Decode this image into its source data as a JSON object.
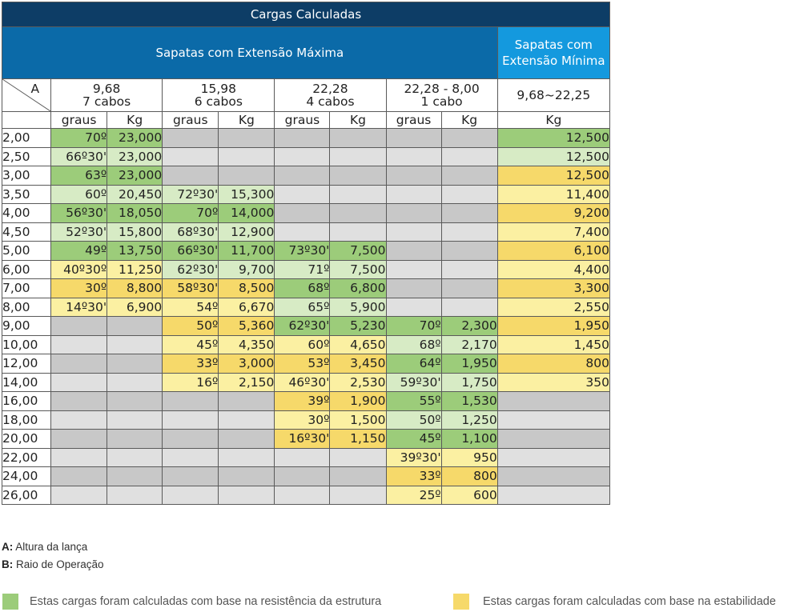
{
  "title": "Cargas Calculadas",
  "section_max": "Sapatas  com Extensão Máxima",
  "section_min": "Sapatas com Extensão Mínima",
  "corner": {
    "a": "A",
    "b": "B"
  },
  "columns": [
    {
      "top": "9,68",
      "bottom": "7 cabos"
    },
    {
      "top": "15,98",
      "bottom": "6 cabos"
    },
    {
      "top": "22,28",
      "bottom": "4 cabos"
    },
    {
      "top": "22,28 - 8,00",
      "bottom": "1 cabo"
    },
    {
      "top": "9,68~22,25",
      "bottom": ""
    }
  ],
  "sub_headers": [
    "graus",
    "Kg",
    "graus",
    "Kg",
    "graus",
    "Kg",
    "graus",
    "Kg",
    "Kg"
  ],
  "color_legend": {
    "g": "#9ccc7a",
    "lg": "#d7ebc5",
    "y": "#f6d96a",
    "ly": "#fbf0a2",
    "gr": "#c8c8c8",
    "lgr": "#e0e0e0"
  },
  "rows": [
    {
      "b": "2,00",
      "cells": [
        [
          "70º",
          "g"
        ],
        [
          "23,000",
          "g"
        ],
        [
          "",
          "gr"
        ],
        [
          "",
          "gr"
        ],
        [
          "",
          "gr"
        ],
        [
          "",
          "gr"
        ],
        [
          "",
          "gr"
        ],
        [
          "",
          "gr"
        ],
        [
          "12,500",
          "g"
        ]
      ]
    },
    {
      "b": "2,50",
      "cells": [
        [
          "66º30'",
          "lg"
        ],
        [
          "23,000",
          "lg"
        ],
        [
          "",
          "lgr"
        ],
        [
          "",
          "lgr"
        ],
        [
          "",
          "lgr"
        ],
        [
          "",
          "lgr"
        ],
        [
          "",
          "lgr"
        ],
        [
          "",
          "lgr"
        ],
        [
          "12,500",
          "lg"
        ]
      ]
    },
    {
      "b": "3,00",
      "cells": [
        [
          "63º",
          "g"
        ],
        [
          "23,000",
          "g"
        ],
        [
          "",
          "gr"
        ],
        [
          "",
          "gr"
        ],
        [
          "",
          "gr"
        ],
        [
          "",
          "gr"
        ],
        [
          "",
          "gr"
        ],
        [
          "",
          "gr"
        ],
        [
          "12,500",
          "y"
        ]
      ]
    },
    {
      "b": "3,50",
      "cells": [
        [
          "60º",
          "lg"
        ],
        [
          "20,450",
          "lg"
        ],
        [
          "72º30'",
          "lg"
        ],
        [
          "15,300",
          "lg"
        ],
        [
          "",
          "lgr"
        ],
        [
          "",
          "lgr"
        ],
        [
          "",
          "lgr"
        ],
        [
          "",
          "lgr"
        ],
        [
          "11,400",
          "ly"
        ]
      ]
    },
    {
      "b": "4,00",
      "cells": [
        [
          "56º30'",
          "g"
        ],
        [
          "18,050",
          "g"
        ],
        [
          "70º",
          "g"
        ],
        [
          "14,000",
          "g"
        ],
        [
          "",
          "gr"
        ],
        [
          "",
          "gr"
        ],
        [
          "",
          "gr"
        ],
        [
          "",
          "gr"
        ],
        [
          "9,200",
          "y"
        ]
      ]
    },
    {
      "b": "4,50",
      "cells": [
        [
          "52º30'",
          "lg"
        ],
        [
          "15,800",
          "lg"
        ],
        [
          "68º30'",
          "lg"
        ],
        [
          "12,900",
          "lg"
        ],
        [
          "",
          "lgr"
        ],
        [
          "",
          "lgr"
        ],
        [
          "",
          "lgr"
        ],
        [
          "",
          "lgr"
        ],
        [
          "7,400",
          "ly"
        ]
      ]
    },
    {
      "b": "5,00",
      "cells": [
        [
          "49º",
          "g"
        ],
        [
          "13,750",
          "g"
        ],
        [
          "66º30'",
          "g"
        ],
        [
          "11,700",
          "g"
        ],
        [
          "73º30'",
          "g"
        ],
        [
          "7,500",
          "g"
        ],
        [
          "",
          "gr"
        ],
        [
          "",
          "gr"
        ],
        [
          "6,100",
          "y"
        ]
      ]
    },
    {
      "b": "6,00",
      "cells": [
        [
          "40º30º",
          "ly"
        ],
        [
          "11,250",
          "ly"
        ],
        [
          "62º30'",
          "lg"
        ],
        [
          "9,700",
          "lg"
        ],
        [
          "71º",
          "lg"
        ],
        [
          "7,500",
          "lg"
        ],
        [
          "",
          "lgr"
        ],
        [
          "",
          "lgr"
        ],
        [
          "4,400",
          "ly"
        ]
      ]
    },
    {
      "b": "7,00",
      "cells": [
        [
          "30º",
          "y"
        ],
        [
          "8,800",
          "y"
        ],
        [
          "58º30'",
          "y"
        ],
        [
          "8,500",
          "y"
        ],
        [
          "68º",
          "g"
        ],
        [
          "6,800",
          "g"
        ],
        [
          "",
          "gr"
        ],
        [
          "",
          "gr"
        ],
        [
          "3,300",
          "y"
        ]
      ]
    },
    {
      "b": "8,00",
      "cells": [
        [
          "14º30'",
          "ly"
        ],
        [
          "6,900",
          "ly"
        ],
        [
          "54º",
          "ly"
        ],
        [
          "6,670",
          "ly"
        ],
        [
          "65º",
          "lg"
        ],
        [
          "5,900",
          "lg"
        ],
        [
          "",
          "lgr"
        ],
        [
          "",
          "lgr"
        ],
        [
          "2,550",
          "ly"
        ]
      ]
    },
    {
      "b": "9,00",
      "cells": [
        [
          "",
          "gr"
        ],
        [
          "",
          "gr"
        ],
        [
          "50º",
          "y"
        ],
        [
          "5,360",
          "y"
        ],
        [
          "62º30'",
          "g"
        ],
        [
          "5,230",
          "g"
        ],
        [
          "70º",
          "g"
        ],
        [
          "2,300",
          "g"
        ],
        [
          "1,950",
          "y"
        ]
      ]
    },
    {
      "b": "10,00",
      "cells": [
        [
          "",
          "lgr"
        ],
        [
          "",
          "lgr"
        ],
        [
          "45º",
          "ly"
        ],
        [
          "4,350",
          "ly"
        ],
        [
          "60º",
          "ly"
        ],
        [
          "4,650",
          "ly"
        ],
        [
          "68º",
          "lg"
        ],
        [
          "2,170",
          "lg"
        ],
        [
          "1,450",
          "ly"
        ]
      ]
    },
    {
      "b": "12,00",
      "cells": [
        [
          "",
          "gr"
        ],
        [
          "",
          "gr"
        ],
        [
          "33º",
          "y"
        ],
        [
          "3,000",
          "y"
        ],
        [
          "53º",
          "y"
        ],
        [
          "3,450",
          "y"
        ],
        [
          "64º",
          "g"
        ],
        [
          "1,950",
          "g"
        ],
        [
          "800",
          "y"
        ]
      ]
    },
    {
      "b": "14,00",
      "cells": [
        [
          "",
          "lgr"
        ],
        [
          "",
          "lgr"
        ],
        [
          "16º",
          "ly"
        ],
        [
          "2,150",
          "ly"
        ],
        [
          "46º30'",
          "ly"
        ],
        [
          "2,530",
          "ly"
        ],
        [
          "59º30'",
          "lg"
        ],
        [
          "1,750",
          "lg"
        ],
        [
          "350",
          "ly"
        ]
      ]
    },
    {
      "b": "16,00",
      "cells": [
        [
          "",
          "gr"
        ],
        [
          "",
          "gr"
        ],
        [
          "",
          "gr"
        ],
        [
          "",
          "gr"
        ],
        [
          "39º",
          "y"
        ],
        [
          "1,900",
          "y"
        ],
        [
          "55º",
          "g"
        ],
        [
          "1,530",
          "g"
        ],
        [
          "",
          "gr"
        ]
      ]
    },
    {
      "b": "18,00",
      "cells": [
        [
          "",
          "lgr"
        ],
        [
          "",
          "lgr"
        ],
        [
          "",
          "lgr"
        ],
        [
          "",
          "lgr"
        ],
        [
          "30º",
          "ly"
        ],
        [
          "1,500",
          "ly"
        ],
        [
          "50º",
          "lg"
        ],
        [
          "1,250",
          "lg"
        ],
        [
          "",
          "lgr"
        ]
      ]
    },
    {
      "b": "20,00",
      "cells": [
        [
          "",
          "gr"
        ],
        [
          "",
          "gr"
        ],
        [
          "",
          "gr"
        ],
        [
          "",
          "gr"
        ],
        [
          "16º30'",
          "y"
        ],
        [
          "1,150",
          "y"
        ],
        [
          "45º",
          "g"
        ],
        [
          "1,100",
          "g"
        ],
        [
          "",
          "gr"
        ]
      ]
    },
    {
      "b": "22,00",
      "cells": [
        [
          "",
          "lgr"
        ],
        [
          "",
          "lgr"
        ],
        [
          "",
          "lgr"
        ],
        [
          "",
          "lgr"
        ],
        [
          "",
          "lgr"
        ],
        [
          "",
          "lgr"
        ],
        [
          "39º30'",
          "ly"
        ],
        [
          "950",
          "ly"
        ],
        [
          "",
          "lgr"
        ]
      ]
    },
    {
      "b": "24,00",
      "cells": [
        [
          "",
          "gr"
        ],
        [
          "",
          "gr"
        ],
        [
          "",
          "gr"
        ],
        [
          "",
          "gr"
        ],
        [
          "",
          "gr"
        ],
        [
          "",
          "gr"
        ],
        [
          "33º",
          "y"
        ],
        [
          "800",
          "y"
        ],
        [
          "",
          "gr"
        ]
      ]
    },
    {
      "b": "26,00",
      "cells": [
        [
          "",
          "lgr"
        ],
        [
          "",
          "lgr"
        ],
        [
          "",
          "lgr"
        ],
        [
          "",
          "lgr"
        ],
        [
          "",
          "lgr"
        ],
        [
          "",
          "lgr"
        ],
        [
          "25º",
          "ly"
        ],
        [
          "600",
          "ly"
        ],
        [
          "",
          "lgr"
        ]
      ]
    }
  ],
  "legend": {
    "a_key": "A:",
    "a_text": " Altura da lança",
    "b_key": "B:",
    "b_text": " Raio de Operação"
  },
  "swatches": {
    "green": "Estas cargas foram calculadas com base na resistência da estrutura",
    "yellow": "Estas cargas foram calculadas com base na estabilidade"
  }
}
